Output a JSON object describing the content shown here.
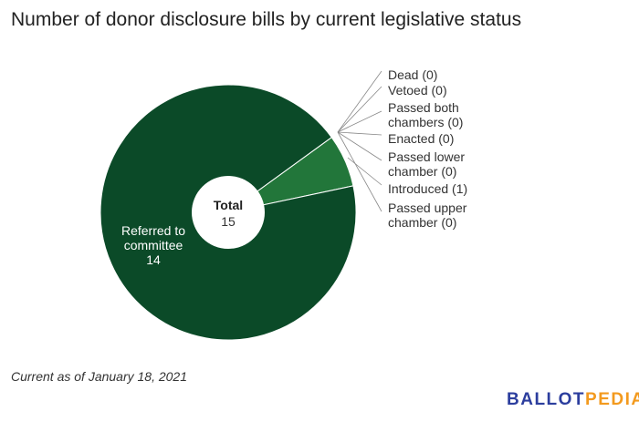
{
  "chart_data": {
    "type": "pie",
    "title": "Number of donor disclosure bills by current legislative status",
    "center_label": "Total",
    "center_value": "15",
    "slices": [
      {
        "label": "Dead",
        "value": 0,
        "color": "#0b4a28"
      },
      {
        "label": "Vetoed",
        "value": 0,
        "color": "#0b4a28"
      },
      {
        "label": "Passed both chambers",
        "value": 0,
        "color": "#0b4a28"
      },
      {
        "label": "Enacted",
        "value": 0,
        "color": "#0b4a28"
      },
      {
        "label": "Passed lower chamber",
        "value": 0,
        "color": "#0b4a28"
      },
      {
        "label": "Introduced",
        "value": 1,
        "color": "#22763a"
      },
      {
        "label": "Passed upper chamber",
        "value": 0,
        "color": "#0b4a28"
      },
      {
        "label": "Referred to committee",
        "value": 14,
        "color": "#0b4a28"
      }
    ],
    "outside_labels": [
      [
        "Dead (0)"
      ],
      [
        "Vetoed (0)"
      ],
      [
        "Passed both",
        "chambers (0)"
      ],
      [
        "Enacted (0)"
      ],
      [
        "Passed lower",
        "chamber (0)"
      ],
      [
        "Introduced (1)"
      ],
      [
        "Passed upper",
        "chamber (0)"
      ]
    ],
    "inside_label": [
      "Referred to",
      "committee",
      "14"
    ]
  },
  "footer": {
    "note": "Current as of January 18, 2021",
    "logo_a": "BALLOT",
    "logo_b": "PEDIA"
  }
}
